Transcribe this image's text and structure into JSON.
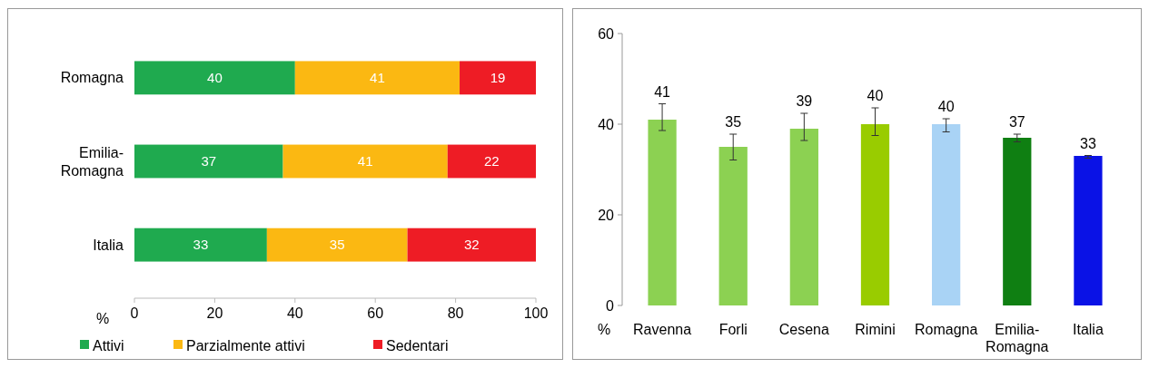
{
  "chart_data": [
    {
      "type": "bar",
      "orientation": "horizontal",
      "stacked": true,
      "categories": [
        "Romagna",
        "Emilia-Romagna",
        "Italia"
      ],
      "series": [
        {
          "name": "Attivi",
          "color": "#1faa4f",
          "values": [
            40,
            37,
            33
          ]
        },
        {
          "name": "Parzialmente attivi",
          "color": "#fbb812",
          "values": [
            41,
            41,
            35
          ]
        },
        {
          "name": "Sedentari",
          "color": "#ee1c25",
          "values": [
            19,
            22,
            32
          ]
        }
      ],
      "xlim": [
        0,
        100
      ],
      "xticks": [
        0,
        20,
        40,
        60,
        80,
        100
      ],
      "xlabel": "%",
      "data_labels": true,
      "legend": "bottom",
      "grid": false
    },
    {
      "type": "bar",
      "categories": [
        "Ravenna",
        "Forli",
        "Cesena",
        "Rimini",
        "Romagna",
        "Emilia-Romagna",
        "Italia"
      ],
      "values": [
        41,
        35,
        39,
        40,
        40,
        37,
        33
      ],
      "colors": [
        "#8cd152",
        "#8cd152",
        "#8cd152",
        "#99cc00",
        "#a9d3f5",
        "#0f7f12",
        "#0a12e6"
      ],
      "errors": [
        [
          38.6,
          44.5
        ],
        [
          32.1,
          37.8
        ],
        [
          36.4,
          42.4
        ],
        [
          37.5,
          43.6
        ],
        [
          38.3,
          41.2
        ],
        [
          36.1,
          37.8
        ],
        [
          32.5,
          33.1
        ]
      ],
      "ylim": [
        0,
        60
      ],
      "yticks": [
        0,
        20,
        40,
        60
      ],
      "xlabel": "%",
      "data_labels": true,
      "grid": false
    }
  ]
}
